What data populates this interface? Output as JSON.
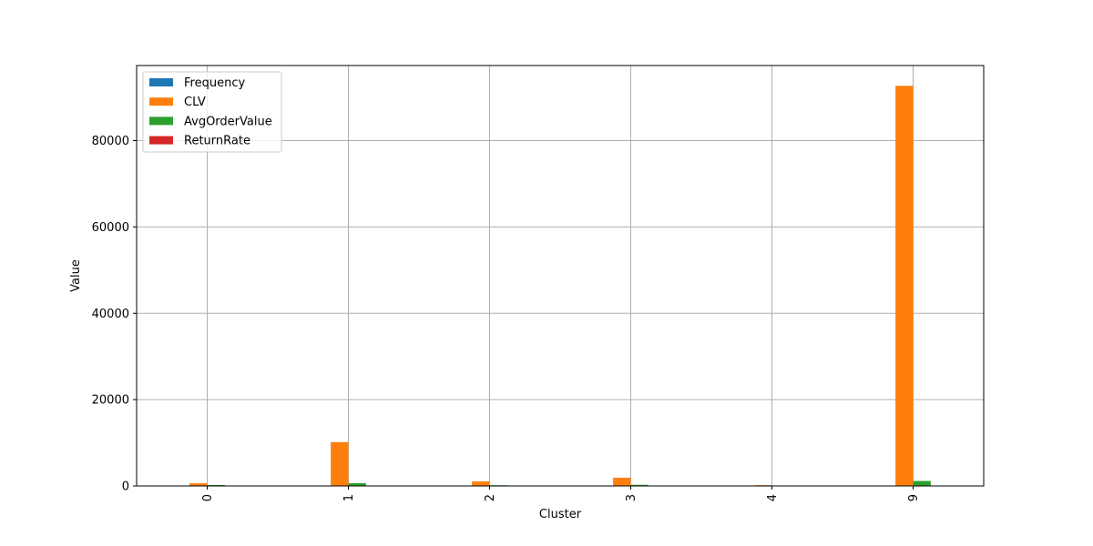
{
  "chart_data": {
    "type": "bar",
    "title": "",
    "xlabel": "Cluster",
    "ylabel": "Value",
    "categories": [
      "0",
      "1",
      "2",
      "3",
      "4",
      "9"
    ],
    "series": [
      {
        "name": "Frequency",
        "color": "#1f77b4",
        "values": [
          5,
          12,
          6,
          7,
          2,
          40
        ]
      },
      {
        "name": "CLV",
        "color": "#ff7f0e",
        "values": [
          620,
          10150,
          1050,
          1900,
          180,
          92700
        ]
      },
      {
        "name": "AvgOrderValue",
        "color": "#2ca02c",
        "values": [
          210,
          650,
          160,
          260,
          65,
          1150
        ]
      },
      {
        "name": "ReturnRate",
        "color": "#d62728",
        "values": [
          0.1,
          0.05,
          0.1,
          0.08,
          0.2,
          0.02
        ]
      }
    ],
    "ylim": [
      0,
      97400
    ],
    "yticks": [
      0,
      20000,
      40000,
      60000,
      80000
    ],
    "ytick_labels": [
      "0",
      "20000",
      "40000",
      "60000",
      "80000"
    ],
    "xtick_rotation": "vertical",
    "grid": true,
    "legend_position": "upper-left"
  }
}
